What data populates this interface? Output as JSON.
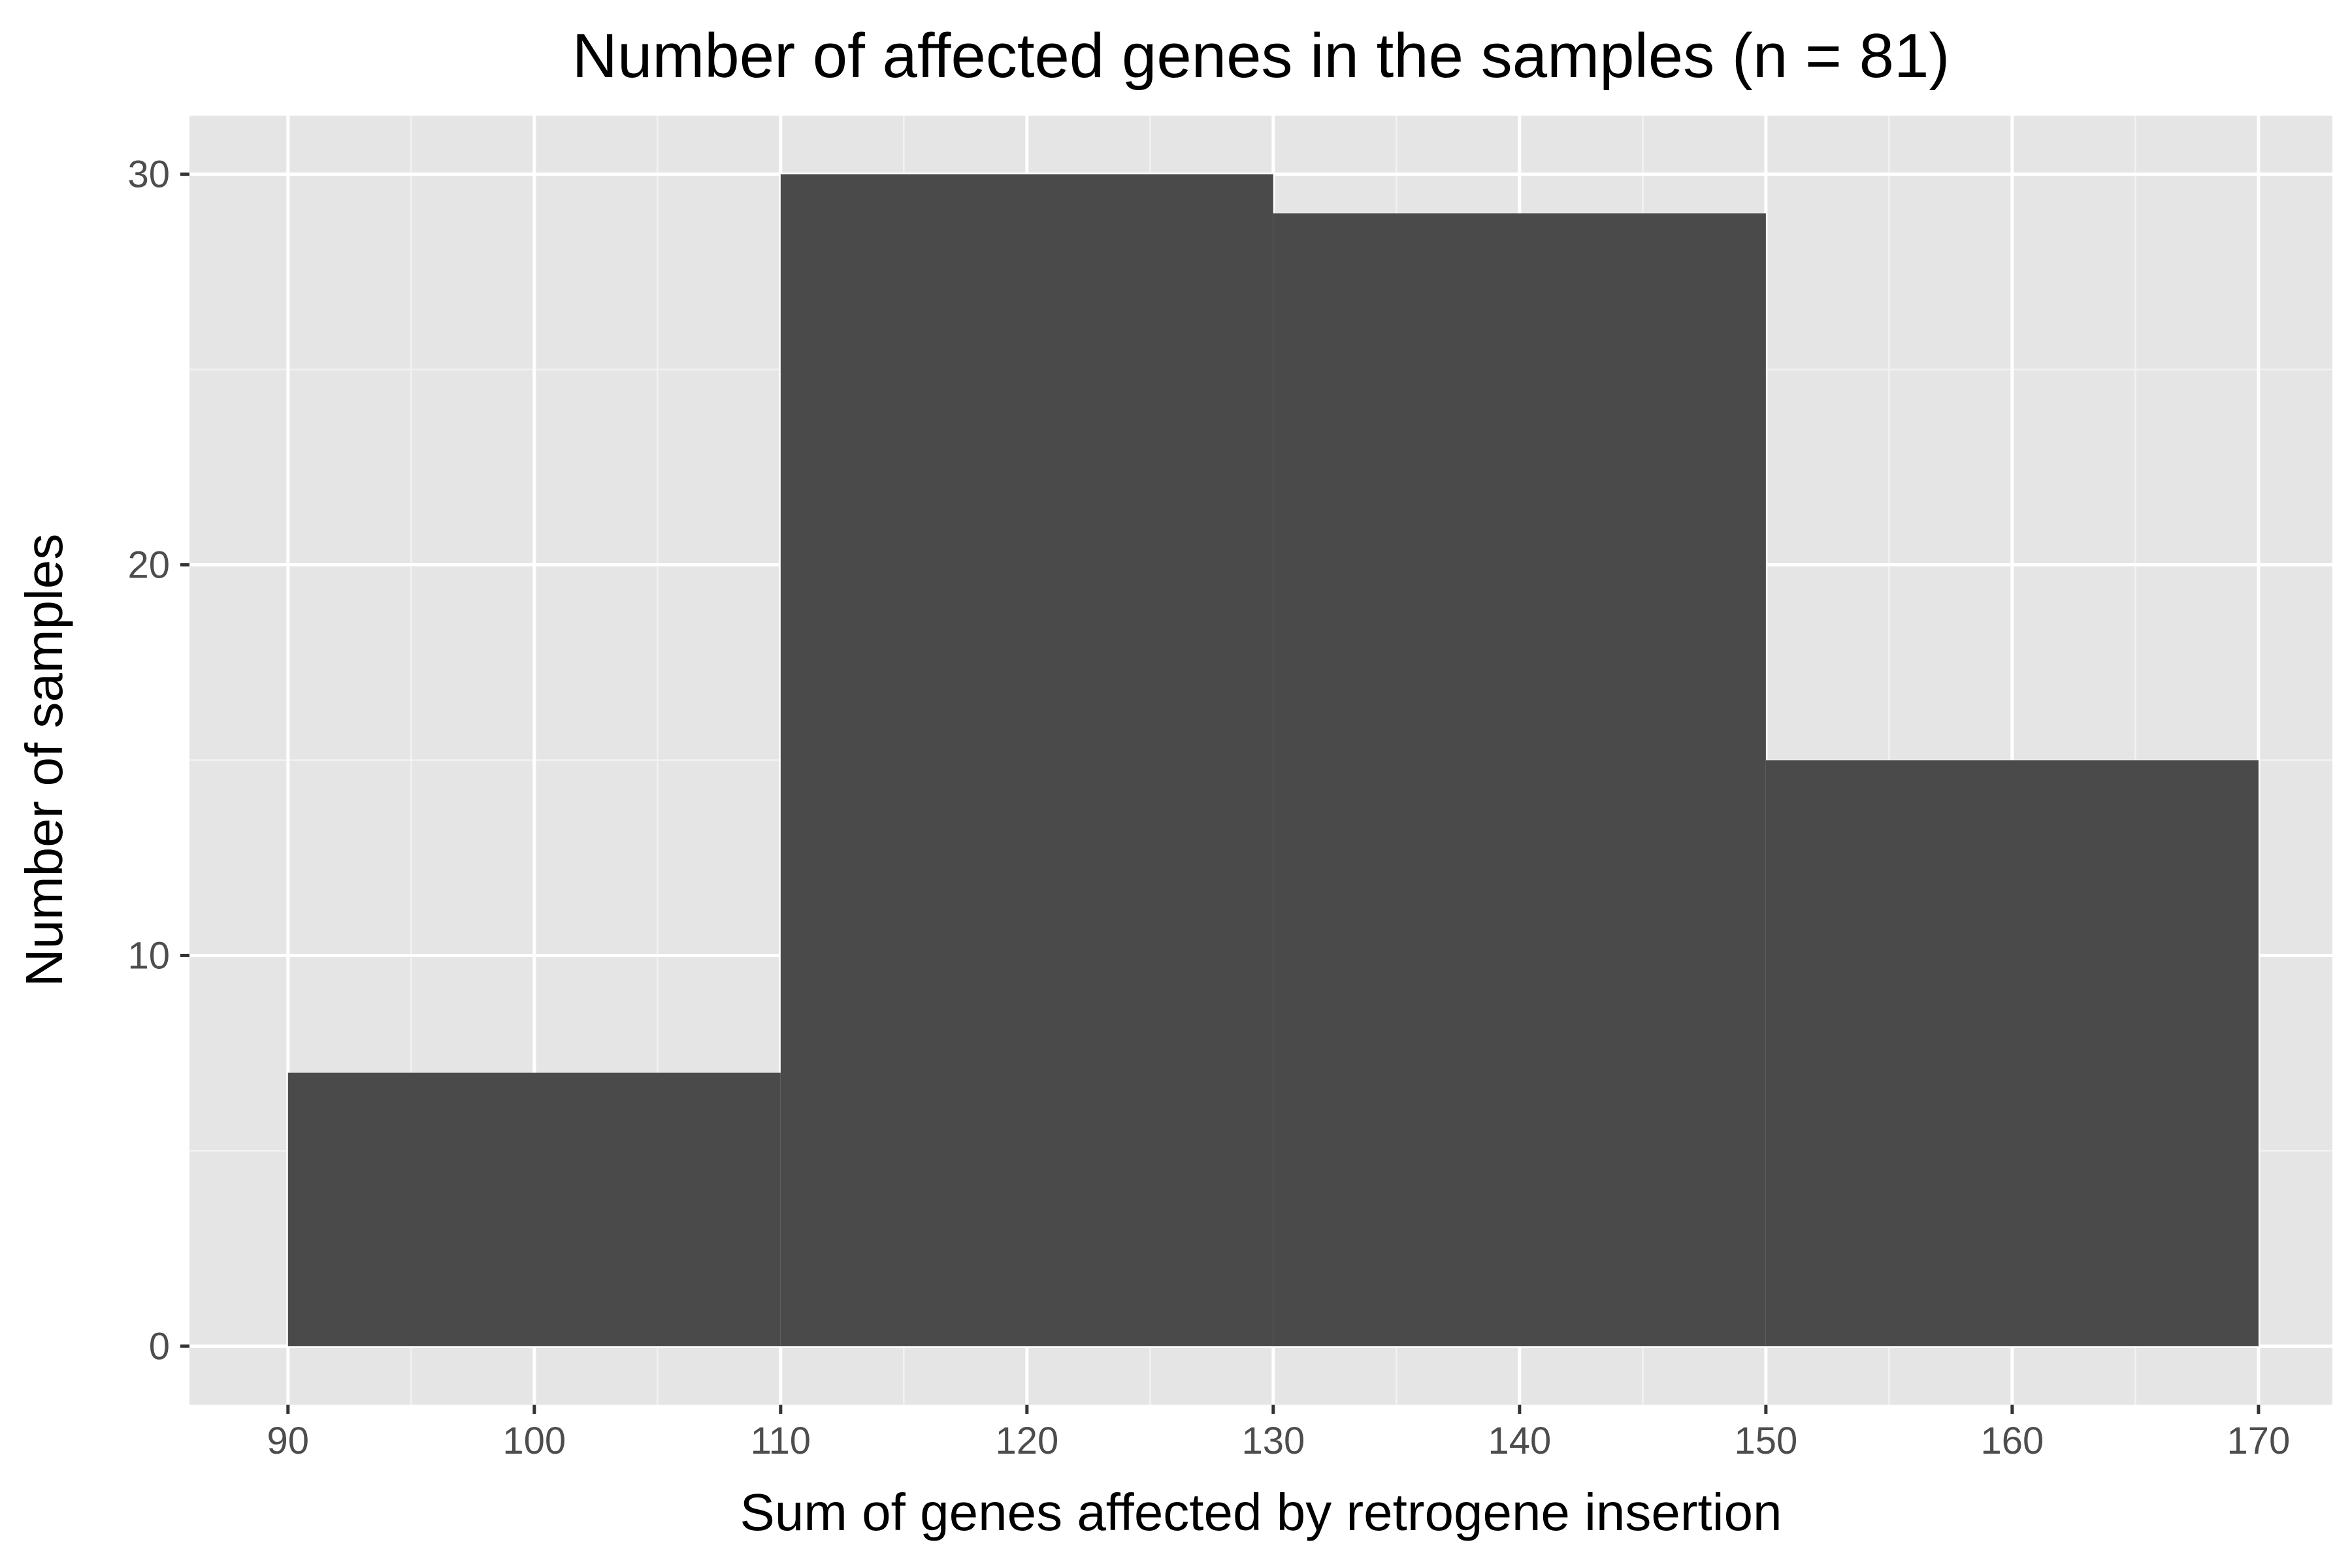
{
  "chart_data": {
    "type": "bar",
    "subtype": "histogram",
    "title": "Number of affected genes in the samples (n = 81)",
    "xlabel": "Sum of genes affected by retrogene insertion",
    "ylabel": "Number of samples",
    "bins": [
      {
        "x_start": 90,
        "x_end": 110,
        "count": 7
      },
      {
        "x_start": 110,
        "x_end": 130,
        "count": 30
      },
      {
        "x_start": 130,
        "x_end": 150,
        "count": 29
      },
      {
        "x_start": 150,
        "x_end": 170,
        "count": 15
      }
    ],
    "xlim": [
      86,
      173
    ],
    "ylim": [
      -1.5,
      31.5
    ],
    "x_ticks": [
      90,
      100,
      110,
      120,
      130,
      140,
      150,
      160,
      170
    ],
    "x_tick_labels": [
      "90",
      "100",
      "110",
      "120",
      "130",
      "140",
      "150",
      "160",
      "170"
    ],
    "y_ticks": [
      0,
      10,
      20,
      30
    ],
    "y_tick_labels": [
      "0",
      "10",
      "20",
      "30"
    ],
    "grid": true,
    "legend": "none",
    "colors": {
      "panel_background": "#e5e5e5",
      "grid_major": "#ffffff",
      "grid_minor": "#f2f2f2",
      "bar_fill": "#4a4a4a",
      "text": "#000000",
      "tick_label": "#4d4d4d",
      "tick_mark": "#333333"
    }
  }
}
